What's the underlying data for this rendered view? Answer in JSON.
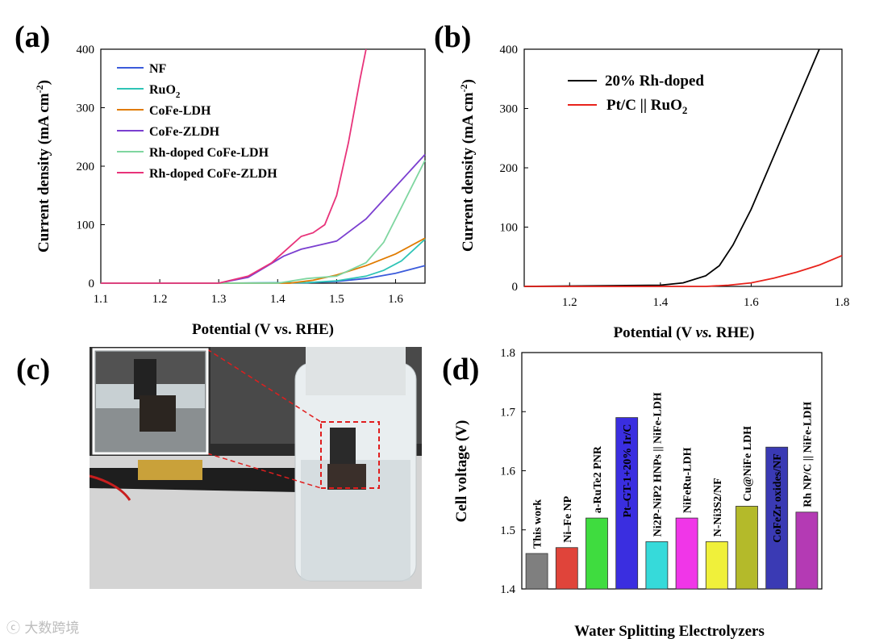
{
  "panels": {
    "a": {
      "label": "(a)",
      "xlabel": "Potential (V vs. RHE)",
      "ylabel": "Current density (mA cm",
      "ylabel_sup": "-2",
      "ylabel_end": ")",
      "xticks": [
        "1.1",
        "1.2",
        "1.3",
        "1.4",
        "1.5",
        "1.6"
      ],
      "yticks": [
        "0",
        "100",
        "200",
        "300",
        "400"
      ],
      "legend": [
        "NF",
        "RuO",
        "CoFe-LDH",
        "CoFe-ZLDH",
        "Rh-doped CoFe-LDH",
        "Rh-doped CoFe-ZLDH"
      ],
      "legend_sub": "2"
    },
    "b": {
      "label": "(b)",
      "xlabel_pre": "Potential (V ",
      "xlabel_it": "vs.",
      "xlabel_post": " RHE)",
      "ylabel": "Current density (mA cm",
      "ylabel_sup": "-2",
      "ylabel_end": ")",
      "xticks": [
        "1.2",
        "1.4",
        "1.6",
        "1.8"
      ],
      "yticks": [
        "0",
        "100",
        "200",
        "300",
        "400"
      ],
      "legend1": "20% Rh-doped",
      "legend2": "Pt/C || RuO",
      "legend2_sub": "2"
    },
    "c": {
      "label": "(c)"
    },
    "d": {
      "label": "(d)",
      "ylabel": "Cell voltage (V)",
      "xlabel": "Water Splitting Electrolyzers",
      "yticks": [
        "1.4",
        "1.5",
        "1.6",
        "1.7",
        "1.8"
      ]
    }
  },
  "chart_data": [
    {
      "type": "line",
      "panel": "a",
      "xlabel": "Potential (V vs. RHE)",
      "ylabel": "Current density (mA cm-2)",
      "xlim": [
        1.1,
        1.65
      ],
      "ylim": [
        0,
        400
      ],
      "series": [
        {
          "name": "NF",
          "color": "#3b5bdb",
          "x": [
            1.1,
            1.3,
            1.45,
            1.5,
            1.55,
            1.6,
            1.65
          ],
          "y": [
            0,
            0,
            1,
            3,
            8,
            17,
            30
          ]
        },
        {
          "name": "RuO2",
          "color": "#2ec4b6",
          "x": [
            1.1,
            1.3,
            1.45,
            1.5,
            1.55,
            1.58,
            1.61,
            1.65
          ],
          "y": [
            0,
            0,
            1,
            4,
            12,
            22,
            38,
            75
          ]
        },
        {
          "name": "CoFe-LDH",
          "color": "#e07b00",
          "x": [
            1.1,
            1.42,
            1.46,
            1.5,
            1.55,
            1.6,
            1.65
          ],
          "y": [
            0,
            0,
            5,
            14,
            30,
            50,
            77
          ]
        },
        {
          "name": "CoFe-ZLDH",
          "color": "#7b3fd0",
          "x": [
            1.1,
            1.3,
            1.35,
            1.38,
            1.41,
            1.44,
            1.47,
            1.5,
            1.55,
            1.6,
            1.65
          ],
          "y": [
            0,
            0,
            10,
            28,
            46,
            58,
            65,
            72,
            110,
            165,
            220
          ]
        },
        {
          "name": "Rh-doped CoFe-LDH",
          "color": "#7fd6a0",
          "x": [
            1.1,
            1.4,
            1.45,
            1.5,
            1.55,
            1.58,
            1.61,
            1.65
          ],
          "y": [
            0,
            0,
            8,
            12,
            35,
            70,
            130,
            210
          ]
        },
        {
          "name": "Rh-doped CoFe-ZLDH",
          "color": "#e8337a",
          "x": [
            1.1,
            1.3,
            1.35,
            1.39,
            1.42,
            1.44,
            1.46,
            1.48,
            1.5,
            1.52,
            1.54,
            1.55
          ],
          "y": [
            0,
            0,
            12,
            35,
            62,
            80,
            86,
            100,
            150,
            240,
            350,
            400
          ]
        }
      ]
    },
    {
      "type": "line",
      "panel": "b",
      "xlabel": "Potential (V vs. RHE)",
      "ylabel": "Current density (mA cm-2)",
      "xlim": [
        1.1,
        1.8
      ],
      "ylim": [
        0,
        400
      ],
      "series": [
        {
          "name": "20% Rh-doped",
          "color": "#000000",
          "x": [
            1.1,
            1.4,
            1.45,
            1.5,
            1.53,
            1.56,
            1.6,
            1.65,
            1.7,
            1.75
          ],
          "y": [
            0,
            2,
            6,
            18,
            35,
            70,
            130,
            220,
            310,
            400
          ]
        },
        {
          "name": "Pt/C || RuO2",
          "color": "#e8231c",
          "x": [
            1.1,
            1.5,
            1.55,
            1.6,
            1.65,
            1.7,
            1.75,
            1.8
          ],
          "y": [
            0,
            0,
            2,
            6,
            14,
            24,
            36,
            52
          ]
        }
      ]
    },
    {
      "type": "bar",
      "panel": "d",
      "ylabel": "Cell voltage (V)",
      "xlabel": "Water Splitting Electrolyzers",
      "ylim": [
        1.4,
        1.8
      ],
      "categories": [
        "This work",
        "Ni–Fe NP",
        "a-RuTe2 PNR",
        "Pt–GT-1+20% Ir/C",
        "Ni2P-NiP2 HNPs || NiFe-LDH",
        "NiFeRu-LDH",
        "N-Ni3S2/NF",
        "Cu@NiFe LDH",
        "CoFeZr oxides/NF",
        "Rh NP/C || NiFe-LDH"
      ],
      "values": [
        1.46,
        1.47,
        1.52,
        1.69,
        1.48,
        1.52,
        1.48,
        1.54,
        1.64,
        1.53
      ],
      "colors": [
        "#7f7f7f",
        "#e0443a",
        "#3fdc3f",
        "#3a2ee0",
        "#36dada",
        "#f036e8",
        "#f0f03a",
        "#b4ba2a",
        "#3a3ab4",
        "#b43ab4"
      ],
      "label_colors": [
        "#000",
        "#000",
        "#000",
        "#fff",
        "#000",
        "#000",
        "#000",
        "#000",
        "#fff",
        "#000"
      ]
    }
  ]
}
